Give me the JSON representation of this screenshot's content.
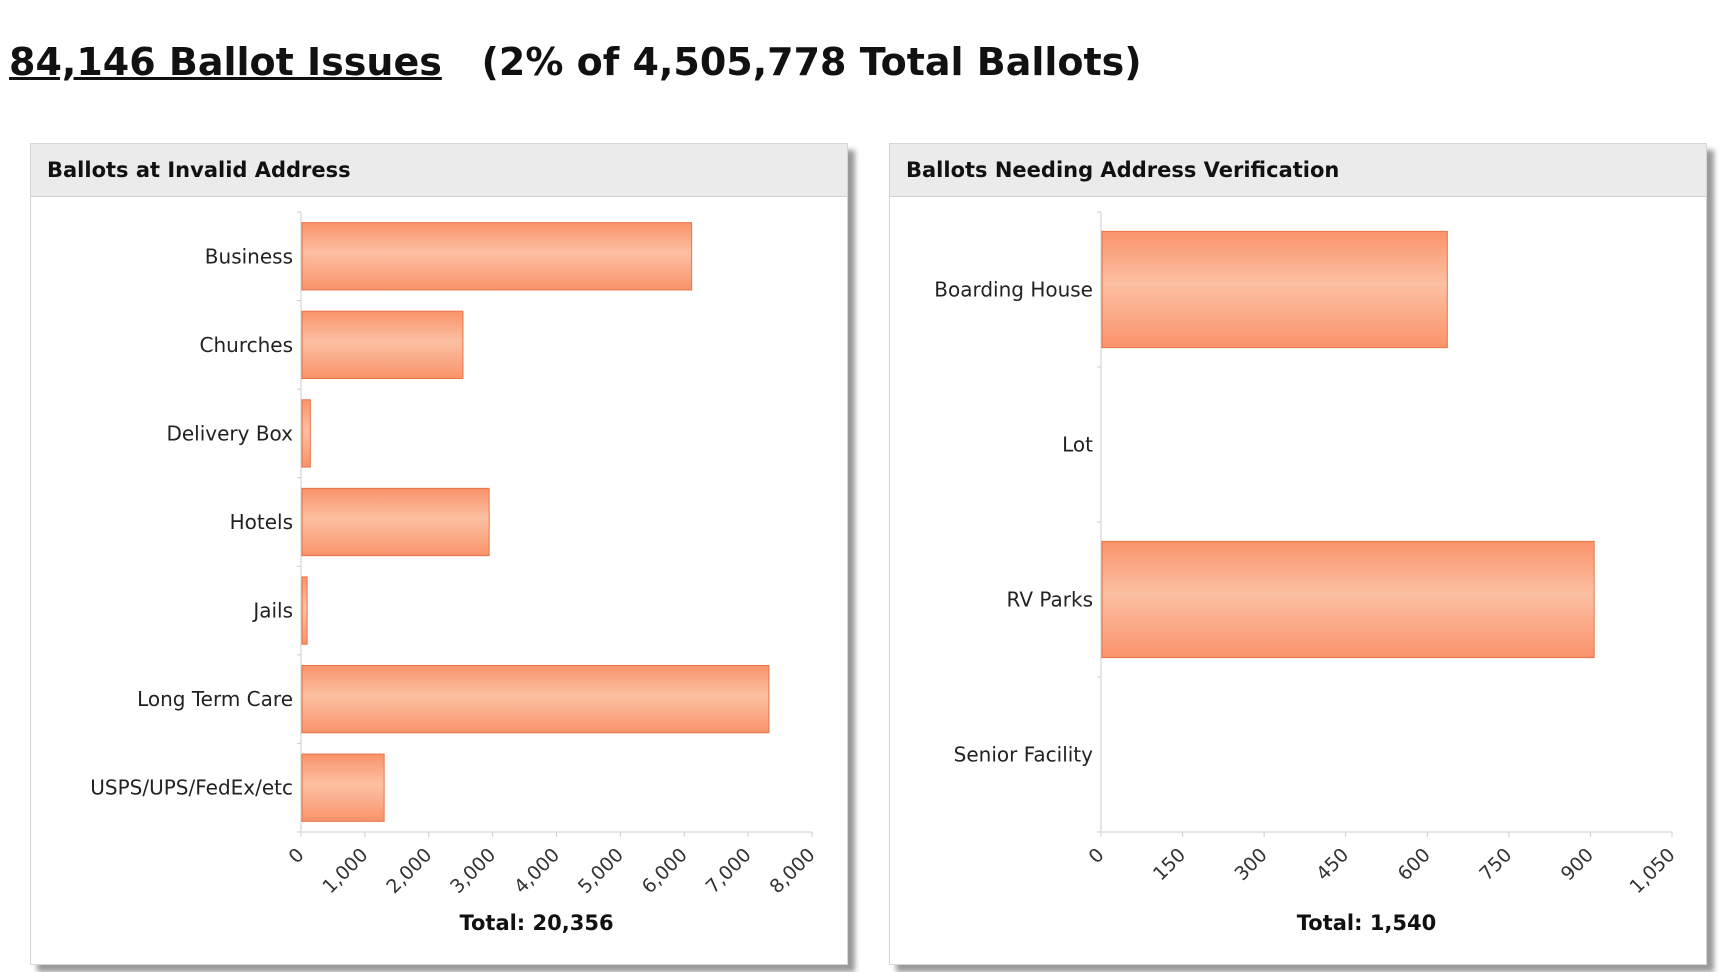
{
  "header": {
    "issues": "84,146 Ballot Issues",
    "summary": "(2% of 4,505,778 Total Ballots)"
  },
  "colors": {
    "bar": "#f9936a",
    "bar_light": "#fcc0a2",
    "bar_edge": "#e8744a"
  },
  "chart_data": [
    {
      "type": "bar",
      "orientation": "horizontal",
      "title": "Ballots at Invalid Address",
      "categories": [
        "Business",
        "Churches",
        "Delivery Box",
        "Hotels",
        "Jails",
        "Long Term Care",
        "USPS/UPS/FedEx/etc"
      ],
      "values": [
        6100,
        2520,
        130,
        2930,
        80,
        7310,
        1286
      ],
      "xlim": [
        0,
        8000
      ],
      "ticks": [
        0,
        1000,
        2000,
        3000,
        4000,
        5000,
        6000,
        7000,
        8000
      ],
      "tick_labels": [
        "0",
        "1,000",
        "2,000",
        "3,000",
        "4,000",
        "5,000",
        "6,000",
        "7,000",
        "8,000"
      ],
      "total_label": "Total:  20,356"
    },
    {
      "type": "bar",
      "orientation": "horizontal",
      "title": "Ballots Needing Address Verification",
      "categories": [
        "Boarding House",
        "Lot",
        "RV Parks",
        "Senior Facility"
      ],
      "values": [
        635,
        0,
        905,
        0
      ],
      "xlim": [
        0,
        1050
      ],
      "ticks": [
        0,
        150,
        300,
        450,
        600,
        750,
        900,
        1050
      ],
      "tick_labels": [
        "0",
        "150",
        "300",
        "450",
        "600",
        "750",
        "900",
        "1,050"
      ],
      "total_label": "Total:  1,540"
    }
  ]
}
